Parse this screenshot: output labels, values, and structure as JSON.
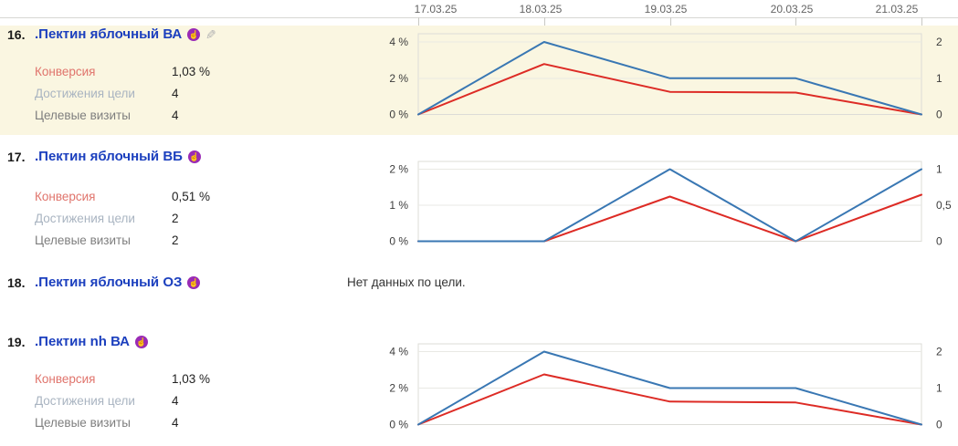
{
  "axis": {
    "dates": [
      "17.03.25",
      "18.03.25",
      "19.03.25",
      "20.03.25",
      "21.03.25"
    ]
  },
  "labels": {
    "conversion": "Конверсия",
    "goals": "Достижения цели",
    "visits": "Целевые визиты"
  },
  "icons": {
    "badge_glyph": "☝",
    "pencil_glyph": "✎"
  },
  "colors": {
    "line_blue": "#3977b3",
    "line_red": "#dd2b25",
    "highlight_bg": "#faf6e1",
    "title_blue": "#1b3fbe",
    "badge_purple": "#9a2bb5"
  },
  "rows": [
    {
      "num": "16.",
      "title": ".Пектин яблочный ВА",
      "metrics": {
        "conversion": "1,03 %",
        "goals": "4",
        "visits": "4"
      }
    },
    {
      "num": "17.",
      "title": ".Пектин яблочный ВБ",
      "metrics": {
        "conversion": "0,51 %",
        "goals": "2",
        "visits": "2"
      }
    },
    {
      "num": "18.",
      "title": ".Пектин яблочный ОЗ",
      "no_data": "Нет данных по цели."
    },
    {
      "num": "19.",
      "title": ".Пектин nh ВА",
      "metrics": {
        "conversion": "1,03 %",
        "goals": "4",
        "visits": "4"
      }
    }
  ],
  "chart_data": [
    {
      "type": "line",
      "x": [
        "17.03.25",
        "18.03.25",
        "19.03.25",
        "20.03.25",
        "21.03.25"
      ],
      "series": [
        {
          "name": "Конверсия",
          "axis": "left",
          "color": "#dd2b25",
          "values": [
            0,
            2.78,
            1.25,
            1.21,
            0
          ]
        },
        {
          "name": "Достижения цели",
          "axis": "right",
          "color": "#3977b3",
          "values": [
            0,
            2,
            1,
            1,
            0
          ]
        }
      ],
      "left_axis": {
        "ticks": [
          "4 %",
          "2 %",
          "0 %"
        ],
        "max": 4
      },
      "right_axis": {
        "ticks": [
          "2",
          "1",
          "0"
        ],
        "max": 2
      },
      "grid": true,
      "legend": "none"
    },
    {
      "type": "line",
      "x": [
        "17.03.25",
        "18.03.25",
        "19.03.25",
        "20.03.25",
        "21.03.25"
      ],
      "series": [
        {
          "name": "Конверсия",
          "axis": "left",
          "color": "#dd2b25",
          "values": [
            0,
            0,
            1.24,
            0,
            1.29
          ]
        },
        {
          "name": "Достижения цели",
          "axis": "right",
          "color": "#3977b3",
          "values": [
            0,
            0,
            1,
            0,
            1
          ]
        }
      ],
      "left_axis": {
        "ticks": [
          "2 %",
          "1 %",
          "0 %"
        ],
        "max": 2
      },
      "right_axis": {
        "ticks": [
          "1",
          "0,5",
          "0"
        ],
        "max": 1
      },
      "grid": true,
      "legend": "none"
    },
    {
      "type": "line",
      "x": [
        "17.03.25",
        "18.03.25",
        "19.03.25",
        "20.03.25",
        "21.03.25"
      ],
      "series": [
        {
          "name": "Конверсия",
          "axis": "left",
          "color": "#dd2b25",
          "values": [
            0,
            2.75,
            1.26,
            1.21,
            0
          ]
        },
        {
          "name": "Достижения цели",
          "axis": "right",
          "color": "#3977b3",
          "values": [
            0,
            2,
            1,
            1,
            0
          ]
        }
      ],
      "left_axis": {
        "ticks": [
          "4 %",
          "2 %",
          "0 %"
        ],
        "max": 4
      },
      "right_axis": {
        "ticks": [
          "2",
          "1",
          "0"
        ],
        "max": 2
      },
      "grid": true,
      "legend": "none"
    }
  ]
}
